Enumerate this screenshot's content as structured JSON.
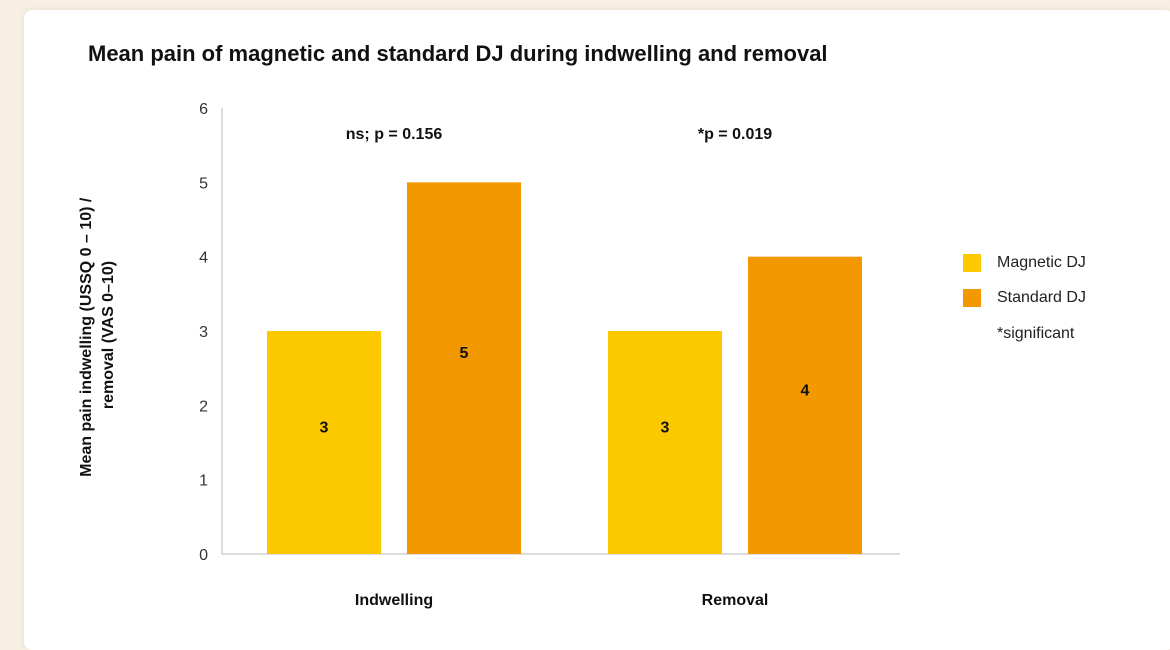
{
  "colors": {
    "magnetic": "#fcc800",
    "standard": "#f39800",
    "background": "#f6efe2"
  },
  "chart_data": {
    "type": "bar",
    "title": "Mean pain of magnetic and standard DJ during indwelling and removal",
    "ylabel_line1": "Mean pain indwelling (USSQ 0 – 10) /",
    "ylabel_line2": "removal (VAS 0–10)",
    "xlabel": "",
    "ylim": [
      0,
      6
    ],
    "yticks": [
      0,
      1,
      2,
      3,
      4,
      5,
      6
    ],
    "categories": [
      "Indwelling",
      "Removal"
    ],
    "series": [
      {
        "name": "Magnetic DJ",
        "values": [
          3,
          3
        ]
      },
      {
        "name": "Standard DJ",
        "values": [
          5,
          4
        ]
      }
    ],
    "annotations": [
      "ns; p = 0.156",
      "*p = 0.019"
    ],
    "note": "*significant",
    "legend_position": "right",
    "grid": false
  }
}
